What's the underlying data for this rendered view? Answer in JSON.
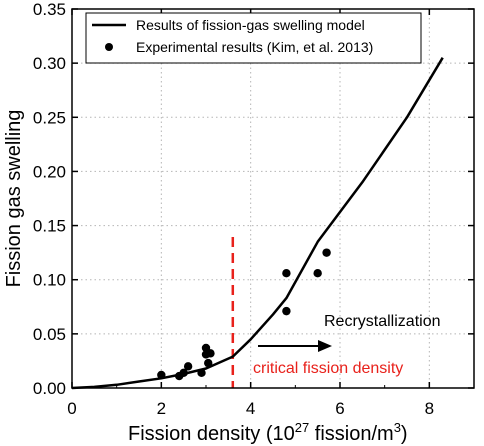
{
  "chart_data": {
    "type": "line",
    "title": "",
    "xlabel": "Fission density (10^27 fission/m^3)",
    "xlabel_parts": {
      "main": "Fission density (10",
      "sup1": "27",
      "mid": " fission/m",
      "sup2": "3",
      "end": ")"
    },
    "ylabel": "Fission gas swelling",
    "xlim": [
      0,
      9
    ],
    "ylim": [
      0,
      0.35
    ],
    "x_ticks": [
      0,
      2,
      4,
      6,
      8
    ],
    "x_tick_labels": [
      "0",
      "2",
      "4",
      "6",
      "8"
    ],
    "y_ticks": [
      0,
      0.05,
      0.1,
      0.15,
      0.2,
      0.25,
      0.3,
      0.35
    ],
    "y_tick_labels": [
      "0.00",
      "0.05",
      "0.10",
      "0.15",
      "0.20",
      "0.25",
      "0.30",
      "0.35"
    ],
    "grid": true,
    "grid_style": "dotted",
    "legend_position": "top-left",
    "series": [
      {
        "name": "Results of fission-gas swelling model",
        "type": "line",
        "color": "#000000",
        "x": [
          0,
          0.5,
          1.0,
          1.5,
          2.0,
          2.5,
          3.0,
          3.6,
          4.0,
          4.5,
          4.8,
          5.5,
          6.5,
          7.5,
          8.3
        ],
        "y": [
          0,
          0.001,
          0.003,
          0.006,
          0.009,
          0.013,
          0.018,
          0.029,
          0.045,
          0.068,
          0.083,
          0.135,
          0.19,
          0.25,
          0.305
        ]
      },
      {
        "name": "Experimental results (Kim, et al. 2013)",
        "type": "scatter",
        "color": "#000000",
        "x": [
          2.0,
          2.4,
          2.5,
          2.6,
          2.9,
          3.0,
          3.0,
          3.05,
          3.1,
          4.8,
          4.8,
          5.5,
          5.7
        ],
        "y": [
          0.012,
          0.011,
          0.014,
          0.02,
          0.014,
          0.037,
          0.031,
          0.023,
          0.032,
          0.106,
          0.071,
          0.106,
          0.125
        ]
      }
    ],
    "critical_line": {
      "x": 3.6,
      "color": "#e8211b",
      "style": "dashed"
    },
    "annotations": {
      "recrystallization": "Recrystallization",
      "critical": "critical fission density"
    }
  }
}
